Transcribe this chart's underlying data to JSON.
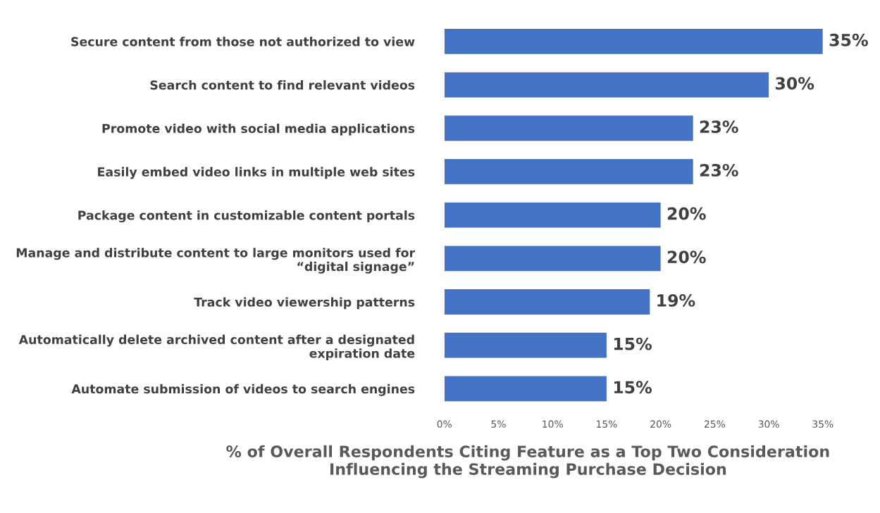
{
  "chart_data": {
    "type": "bar",
    "orientation": "horizontal",
    "categories": [
      "Secure content from those not authorized to view",
      "Search content to find relevant videos",
      "Promote video with social media applications",
      "Easily embed video links in multiple web sites",
      "Package content in customizable content portals",
      "Manage and distribute content to large monitors used for “digital signage”",
      "Track video viewership patterns",
      "Automatically delete archived content after a designated expiration date",
      "Automate submission of videos to search engines"
    ],
    "values": [
      35,
      30,
      23,
      23,
      20,
      20,
      19,
      15,
      15
    ],
    "value_labels": [
      "35%",
      "30%",
      "23%",
      "23%",
      "20%",
      "20%",
      "19%",
      "15%",
      "15%"
    ],
    "color": "#4472c4",
    "xlim": [
      0,
      35
    ],
    "xticks": [
      {
        "value": 0,
        "label": "0%"
      },
      {
        "value": 5,
        "label": "5%"
      },
      {
        "value": 10,
        "label": "10%"
      },
      {
        "value": 15,
        "label": "15%"
      },
      {
        "value": 20,
        "label": "20%"
      },
      {
        "value": 25,
        "label": "25%"
      },
      {
        "value": 30,
        "label": "30%"
      },
      {
        "value": 35,
        "label": "35%"
      }
    ],
    "xlabel": "% of Overall Respondents Citing Feature as a Top Two Consideration Influencing the Streaming Purchase Decision",
    "grid": false,
    "legend": false
  }
}
